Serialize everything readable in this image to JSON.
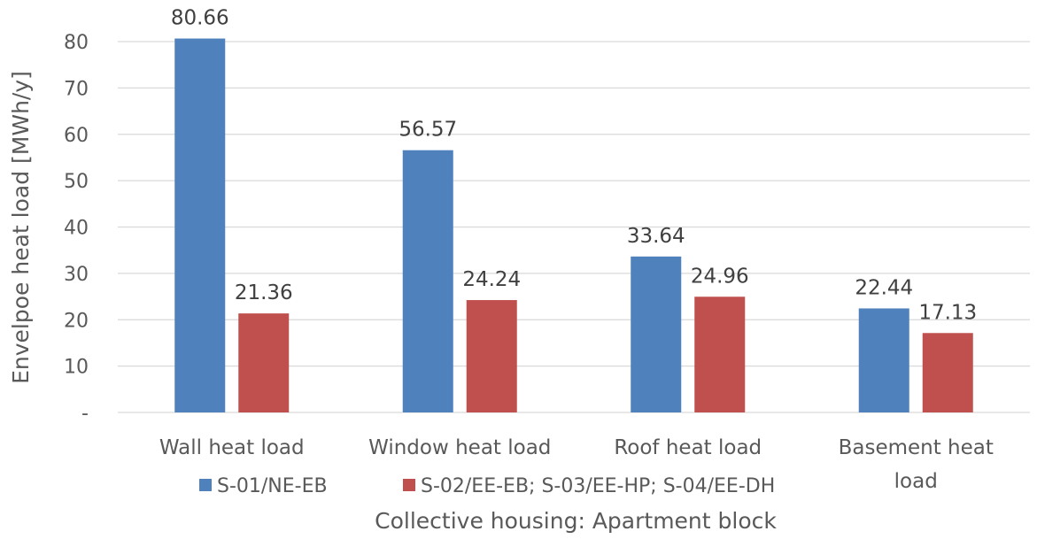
{
  "chart_data": {
    "type": "bar",
    "categories": [
      [
        "Wall heat load"
      ],
      [
        "Window heat load"
      ],
      [
        "Roof heat load"
      ],
      [
        "Basement heat",
        "load"
      ]
    ],
    "series": [
      {
        "name": "S-01/NE-EB",
        "color": "#4f81bd",
        "values": [
          80.66,
          56.57,
          33.64,
          22.44
        ],
        "labels": [
          "80.66",
          "56.57",
          "33.64",
          "22.44"
        ]
      },
      {
        "name": "S-02/EE-EB; S-03/EE-HP; S-04/EE-DH",
        "color": "#c0504d",
        "values": [
          21.36,
          24.24,
          24.96,
          17.13
        ],
        "labels": [
          "21.36",
          "24.24",
          "24.96",
          "17.13"
        ]
      }
    ],
    "yticks": [
      {
        "value": 0,
        "label": "-"
      },
      {
        "value": 10,
        "label": "10"
      },
      {
        "value": 20,
        "label": "20"
      },
      {
        "value": 30,
        "label": "30"
      },
      {
        "value": 40,
        "label": "40"
      },
      {
        "value": 50,
        "label": "50"
      },
      {
        "value": 60,
        "label": "60"
      },
      {
        "value": 70,
        "label": "70"
      },
      {
        "value": 80,
        "label": "80"
      }
    ],
    "ylim": [
      0,
      80
    ],
    "ylabel": "Envelpoe heat load [MWh/y]",
    "xlabel": "Collective housing: Apartment block",
    "grid": true,
    "legend": "bottom",
    "gridColor": "#d9d9d9"
  }
}
